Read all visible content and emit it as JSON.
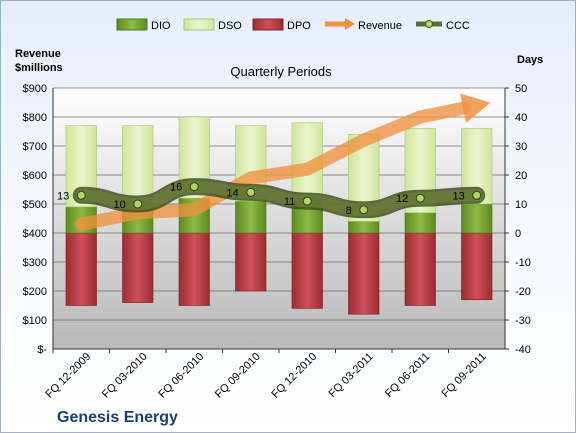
{
  "company": "Genesis Energy",
  "chart_data": {
    "type": "bar",
    "title": "Quarterly Periods",
    "left_axis_label": [
      "Revenue",
      "$millions"
    ],
    "right_axis_label": "Days",
    "categories": [
      "FQ 12-2009",
      "FQ 03-2010",
      "FQ 06-2010",
      "FQ 09-2010",
      "FQ 12-2010",
      "FQ 03-2011",
      "FQ 06-2011",
      "FQ 09-2011"
    ],
    "left_axis": {
      "min": 0,
      "max": 900,
      "step": 100,
      "tick_labels": [
        "$-",
        "$100",
        "$200",
        "$300",
        "$400",
        "$500",
        "$600",
        "$700",
        "$800",
        "$900"
      ]
    },
    "right_axis": {
      "min": -40,
      "max": 50,
      "step": 10,
      "tick_labels": [
        "-40",
        "-30",
        "-20",
        "-10",
        "0",
        "10",
        "20",
        "30",
        "40",
        "50"
      ]
    },
    "legend": {
      "position": "top",
      "entries": [
        "DIO",
        "DSO",
        "DPO",
        "Revenue",
        "CCC"
      ]
    },
    "series": [
      {
        "name": "DIO",
        "kind": "stacked-bar",
        "axis": "right",
        "color": "#6f9a2c",
        "values": [
          9,
          11,
          12,
          11,
          12,
          4,
          7,
          10
        ]
      },
      {
        "name": "DSO",
        "kind": "stacked-bar",
        "axis": "right",
        "color": "#dfeeb8",
        "values": [
          28,
          26,
          28,
          26,
          26,
          30,
          29,
          26
        ]
      },
      {
        "name": "DPO",
        "kind": "bar-negative",
        "axis": "right",
        "color": "#b3393f",
        "values": [
          -25,
          -24,
          -25,
          -20,
          -26,
          -28,
          -25,
          -23
        ]
      },
      {
        "name": "Revenue",
        "kind": "arrow-trend",
        "axis": "left",
        "color": "#f0913f",
        "values": [
          430,
          470,
          480,
          590,
          620,
          720,
          800,
          840
        ]
      },
      {
        "name": "CCC",
        "kind": "line",
        "axis": "right",
        "color": "#5a6e2e",
        "values": [
          13,
          10,
          16,
          14,
          11,
          8,
          12,
          13
        ],
        "labels": [
          "13",
          "10",
          "16",
          "14",
          "11",
          "8",
          "12",
          "13"
        ]
      }
    ]
  }
}
